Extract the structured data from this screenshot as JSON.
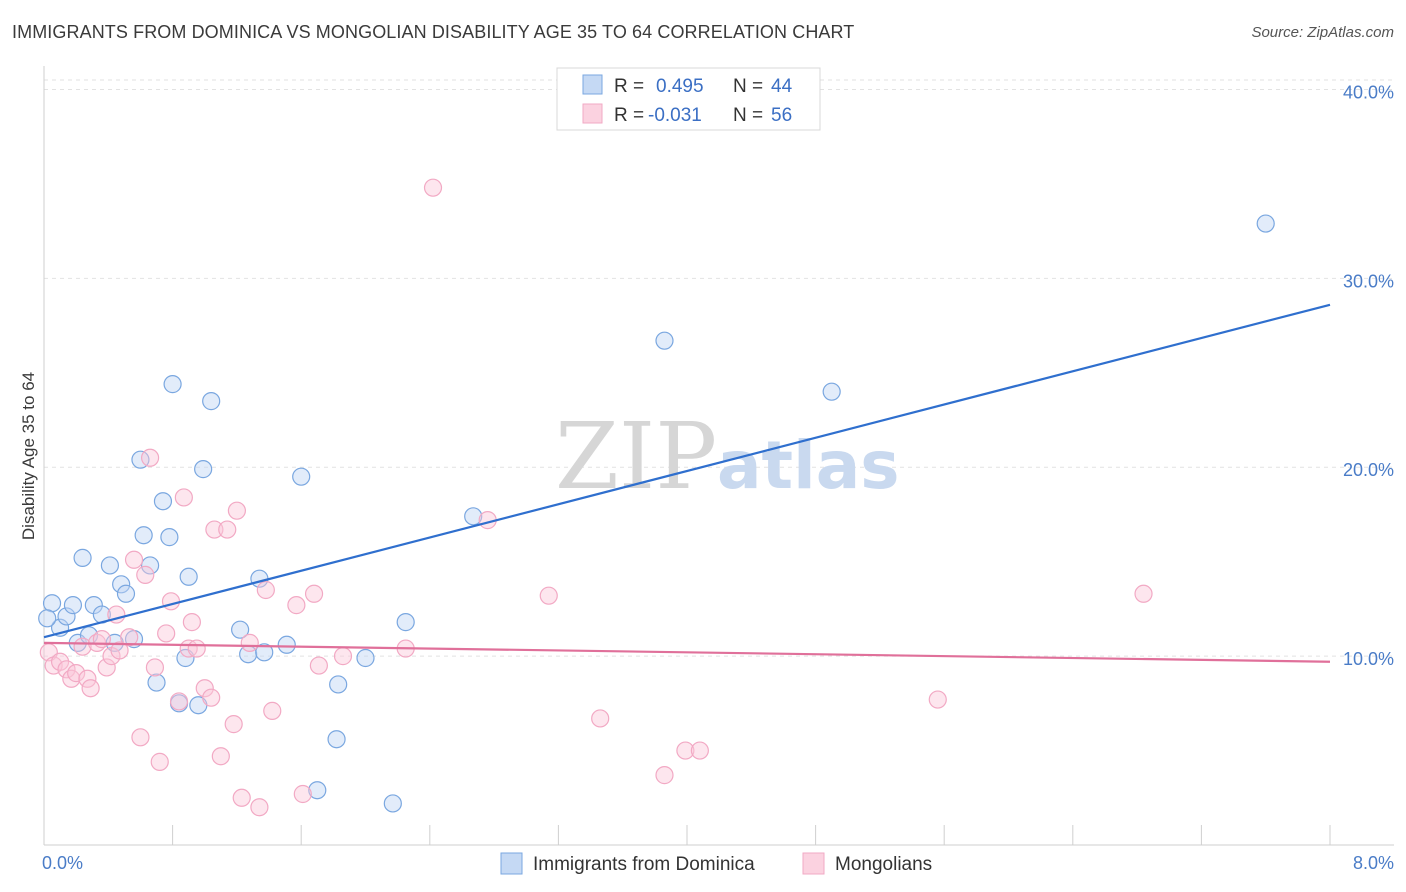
{
  "title": "IMMIGRANTS FROM DOMINICA VS MONGOLIAN DISABILITY AGE 35 TO 64 CORRELATION CHART",
  "source": "Source: ZipAtlas.com",
  "watermark": {
    "zip": "ZIP",
    "atlas": "atlas"
  },
  "chart_data": {
    "type": "scatter",
    "ylabel": "Disability Age 35 to 64",
    "xlim": [
      0,
      8
    ],
    "ylim": [
      0,
      40.5
    ],
    "x_tick_labels": {
      "min": "0.0%",
      "max": "8.0%"
    },
    "y_ticks": [
      {
        "value": 10,
        "label": "10.0%"
      },
      {
        "value": 20,
        "label": "20.0%"
      },
      {
        "value": 30,
        "label": "30.0%"
      },
      {
        "value": 40,
        "label": "40.0%"
      }
    ],
    "grid": true,
    "legend_position": "top-center",
    "series": [
      {
        "name": "Immigrants from Dominica",
        "color": "#7aa7e0",
        "line_color": "#2f6fce",
        "R": "0.495",
        "N": "44",
        "trend": {
          "x": [
            0,
            8
          ],
          "y": [
            11.0,
            28.6
          ]
        },
        "points": [
          [
            0.05,
            12.8
          ],
          [
            0.1,
            11.5
          ],
          [
            0.14,
            12.1
          ],
          [
            0.18,
            12.7
          ],
          [
            0.21,
            10.7
          ],
          [
            0.24,
            15.2
          ],
          [
            0.28,
            11.1
          ],
          [
            0.31,
            12.7
          ],
          [
            0.36,
            12.2
          ],
          [
            0.41,
            14.8
          ],
          [
            0.44,
            10.7
          ],
          [
            0.48,
            13.8
          ],
          [
            0.51,
            13.3
          ],
          [
            0.56,
            10.9
          ],
          [
            0.6,
            20.4
          ],
          [
            0.62,
            16.4
          ],
          [
            0.66,
            14.8
          ],
          [
            0.7,
            8.6
          ],
          [
            0.74,
            18.2
          ],
          [
            0.78,
            16.3
          ],
          [
            0.8,
            24.4
          ],
          [
            0.84,
            7.5
          ],
          [
            0.88,
            9.9
          ],
          [
            0.9,
            14.2
          ],
          [
            0.96,
            7.4
          ],
          [
            0.99,
            19.9
          ],
          [
            1.04,
            23.5
          ],
          [
            1.22,
            11.4
          ],
          [
            1.27,
            10.1
          ],
          [
            1.34,
            14.1
          ],
          [
            1.37,
            10.2
          ],
          [
            1.51,
            10.6
          ],
          [
            1.6,
            19.5
          ],
          [
            1.7,
            2.9
          ],
          [
            1.82,
            5.6
          ],
          [
            1.83,
            8.5
          ],
          [
            2.0,
            9.9
          ],
          [
            2.17,
            2.2
          ],
          [
            2.25,
            11.8
          ],
          [
            2.67,
            17.4
          ],
          [
            3.86,
            26.7
          ],
          [
            4.9,
            24.0
          ],
          [
            7.6,
            32.9
          ],
          [
            0.02,
            12.0
          ]
        ]
      },
      {
        "name": "Mongolians",
        "color": "#f2a9c4",
        "line_color": "#e0709a",
        "R": "-0.031",
        "N": "56",
        "trend": {
          "x": [
            0,
            8
          ],
          "y": [
            10.7,
            9.7
          ]
        },
        "points": [
          [
            0.03,
            10.2
          ],
          [
            0.06,
            9.5
          ],
          [
            0.1,
            9.7
          ],
          [
            0.14,
            9.3
          ],
          [
            0.17,
            8.8
          ],
          [
            0.2,
            9.1
          ],
          [
            0.24,
            10.5
          ],
          [
            0.27,
            8.8
          ],
          [
            0.29,
            8.3
          ],
          [
            0.33,
            10.7
          ],
          [
            0.36,
            10.9
          ],
          [
            0.39,
            9.4
          ],
          [
            0.42,
            10.0
          ],
          [
            0.45,
            12.2
          ],
          [
            0.47,
            10.3
          ],
          [
            0.53,
            11.0
          ],
          [
            0.56,
            15.1
          ],
          [
            0.6,
            5.7
          ],
          [
            0.63,
            14.3
          ],
          [
            0.66,
            20.5
          ],
          [
            0.69,
            9.4
          ],
          [
            0.72,
            4.4
          ],
          [
            0.76,
            11.2
          ],
          [
            0.79,
            12.9
          ],
          [
            0.84,
            7.6
          ],
          [
            0.87,
            18.4
          ],
          [
            0.9,
            10.4
          ],
          [
            0.92,
            11.8
          ],
          [
            0.95,
            10.4
          ],
          [
            1.0,
            8.3
          ],
          [
            1.04,
            7.8
          ],
          [
            1.06,
            16.7
          ],
          [
            1.1,
            4.7
          ],
          [
            1.14,
            16.7
          ],
          [
            1.18,
            6.4
          ],
          [
            1.2,
            17.7
          ],
          [
            1.23,
            2.5
          ],
          [
            1.28,
            10.7
          ],
          [
            1.34,
            2.0
          ],
          [
            1.38,
            13.5
          ],
          [
            1.42,
            7.1
          ],
          [
            1.57,
            12.7
          ],
          [
            1.61,
            2.7
          ],
          [
            1.68,
            13.3
          ],
          [
            1.71,
            9.5
          ],
          [
            1.86,
            10.0
          ],
          [
            2.25,
            10.4
          ],
          [
            2.42,
            34.8
          ],
          [
            2.76,
            17.2
          ],
          [
            3.14,
            13.2
          ],
          [
            3.46,
            6.7
          ],
          [
            3.86,
            3.7
          ],
          [
            3.99,
            5.0
          ],
          [
            4.08,
            5.0
          ],
          [
            5.56,
            7.7
          ],
          [
            6.84,
            13.3
          ]
        ]
      }
    ]
  }
}
